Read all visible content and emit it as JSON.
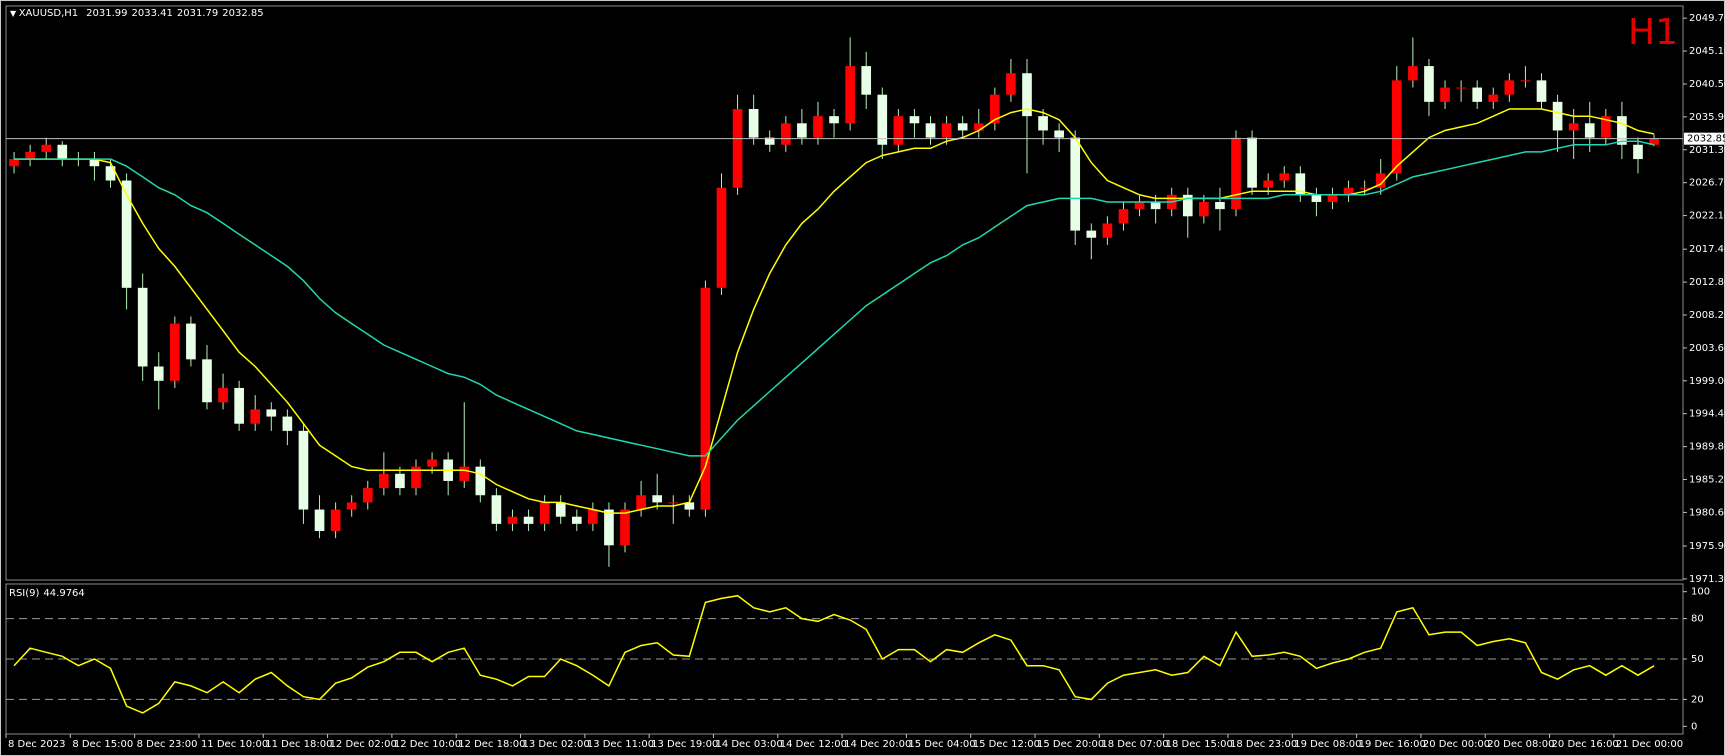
{
  "chart_data": {
    "type": "candlestick",
    "title": "XAUUSD,H1",
    "period_label": "H1",
    "up_color": "#ff0000",
    "down_color": "#e6ffe6",
    "wick_color": "#b8f0b8",
    "background": "#000000",
    "ylim": [
      1971.15,
      2051.4
    ],
    "yticks": [
      {
        "value": 2049.7,
        "label": "2049.70"
      },
      {
        "value": 2045.1,
        "label": "2045.10"
      },
      {
        "value": 2040.5,
        "label": "2040.50"
      },
      {
        "value": 2035.9,
        "label": "2035.90"
      },
      {
        "value": 2031.3,
        "label": "2031.30"
      },
      {
        "value": 2026.7,
        "label": "2026.70"
      },
      {
        "value": 2022.1,
        "label": "2022.10"
      },
      {
        "value": 2017.4,
        "label": "2017.40"
      },
      {
        "value": 2012.8,
        "label": "2012.80"
      },
      {
        "value": 2008.2,
        "label": "2008.20"
      },
      {
        "value": 2003.6,
        "label": "2003.60"
      },
      {
        "value": 1999,
        "label": "1999.00"
      },
      {
        "value": 1994.4,
        "label": "1994.40"
      },
      {
        "value": 1989.8,
        "label": "1989.80"
      },
      {
        "value": 1985.2,
        "label": "1985.20"
      },
      {
        "value": 1980.6,
        "label": "1980.60"
      },
      {
        "value": 1975.9,
        "label": "1975.90"
      },
      {
        "value": 1971.3,
        "label": "1971.30"
      }
    ],
    "categories": [
      "8 Dec 2023",
      null,
      null,
      null,
      "8 Dec 15:00",
      null,
      null,
      null,
      "8 Dec 23:00",
      null,
      null,
      null,
      "11 Dec 10:00",
      null,
      null,
      null,
      "11 Dec 18:00",
      null,
      null,
      null,
      "12 Dec 02:00",
      null,
      null,
      null,
      "12 Dec 10:00",
      null,
      null,
      null,
      "12 Dec 18:00",
      null,
      null,
      null,
      "13 Dec 02:00",
      null,
      null,
      null,
      "13 Dec 11:00",
      null,
      null,
      null,
      "13 Dec 19:00",
      null,
      null,
      null,
      "14 Dec 03:00",
      null,
      null,
      null,
      "14 Dec 12:00",
      null,
      null,
      null,
      "14 Dec 20:00",
      null,
      null,
      null,
      "15 Dec 04:00",
      null,
      null,
      null,
      "15 Dec 12:00",
      null,
      null,
      null,
      "15 Dec 20:00",
      null,
      null,
      null,
      "18 Dec 07:00",
      null,
      null,
      null,
      "18 Dec 15:00",
      null,
      null,
      null,
      "18 Dec 23:00",
      null,
      null,
      null,
      "19 Dec 08:00",
      null,
      null,
      null,
      "19 Dec 16:00",
      null,
      null,
      null,
      "20 Dec 00:00",
      null,
      null,
      null,
      "20 Dec 08:00",
      null,
      null,
      null,
      "20 Dec 16:00",
      null,
      null,
      null,
      "21 Dec 00:00",
      null,
      null
    ],
    "candles": [
      [
        2029,
        2031,
        2028,
        2030
      ],
      [
        2030,
        2032,
        2029,
        2031
      ],
      [
        2031,
        2033,
        2030,
        2032
      ],
      [
        2032,
        2032.5,
        2029,
        2030
      ],
      [
        2030,
        2031,
        2029,
        2030
      ],
      [
        2030,
        2031,
        2027,
        2029
      ],
      [
        2029,
        2030,
        2026,
        2027
      ],
      [
        2027,
        2028,
        2009,
        2012
      ],
      [
        2012,
        2014,
        1999,
        2001
      ],
      [
        2001,
        2003,
        1995,
        1999
      ],
      [
        1999,
        2008,
        1998,
        2007
      ],
      [
        2007,
        2008,
        2001,
        2002
      ],
      [
        2002,
        2004,
        1995,
        1996
      ],
      [
        1996,
        2000,
        1995,
        1998
      ],
      [
        1998,
        1999,
        1992,
        1993
      ],
      [
        1993,
        1997,
        1992,
        1995
      ],
      [
        1995,
        1996,
        1992,
        1994
      ],
      [
        1994,
        1995,
        1990,
        1992
      ],
      [
        1992,
        1993,
        1979,
        1981
      ],
      [
        1981,
        1983,
        1977,
        1978
      ],
      [
        1978,
        1982,
        1977,
        1981
      ],
      [
        1981,
        1983,
        1980,
        1982
      ],
      [
        1982,
        1985,
        1981,
        1984
      ],
      [
        1984,
        1989,
        1983,
        1986
      ],
      [
        1986,
        1987,
        1983,
        1984
      ],
      [
        1984,
        1988,
        1983,
        1987
      ],
      [
        1987,
        1989,
        1986,
        1988
      ],
      [
        1988,
        1989,
        1983,
        1985
      ],
      [
        1985,
        1996,
        1984,
        1987
      ],
      [
        1987,
        1988,
        1982,
        1983
      ],
      [
        1983,
        1984,
        1978,
        1979
      ],
      [
        1979,
        1981,
        1978,
        1980
      ],
      [
        1980,
        1981,
        1978,
        1979
      ],
      [
        1979,
        1983,
        1978,
        1982
      ],
      [
        1982,
        1983,
        1979,
        1980
      ],
      [
        1980,
        1981,
        1978,
        1979
      ],
      [
        1979,
        1982,
        1978,
        1981
      ],
      [
        1981,
        1982,
        1973,
        1976
      ],
      [
        1976,
        1982,
        1975,
        1981
      ],
      [
        1981,
        1985,
        1980,
        1983
      ],
      [
        1983,
        1986,
        1981,
        1982
      ],
      [
        1982,
        1983,
        1979,
        1982
      ],
      [
        1982,
        1983,
        1980,
        1981
      ],
      [
        1981,
        2013,
        1980,
        2012
      ],
      [
        2012,
        2028,
        2011,
        2026
      ],
      [
        2026,
        2039,
        2025,
        2037
      ],
      [
        2037,
        2039,
        2032,
        2033
      ],
      [
        2033,
        2034,
        2031,
        2032
      ],
      [
        2032,
        2036,
        2031,
        2035
      ],
      [
        2035,
        2037,
        2032,
        2033
      ],
      [
        2033,
        2038,
        2032,
        2036
      ],
      [
        2036,
        2037,
        2033,
        2035
      ],
      [
        2035,
        2047,
        2034,
        2043
      ],
      [
        2043,
        2045,
        2037,
        2039
      ],
      [
        2039,
        2040,
        2030,
        2032
      ],
      [
        2032,
        2037,
        2031,
        2036
      ],
      [
        2036,
        2037,
        2033,
        2035
      ],
      [
        2035,
        2036,
        2032,
        2033
      ],
      [
        2033,
        2036,
        2032,
        2035
      ],
      [
        2035,
        2036,
        2033,
        2034
      ],
      [
        2034,
        2037,
        2033,
        2035
      ],
      [
        2035,
        2040,
        2034,
        2039
      ],
      [
        2039,
        2044,
        2038,
        2042
      ],
      [
        2042,
        2044,
        2028,
        2036
      ],
      [
        2036,
        2037,
        2032,
        2034
      ],
      [
        2034,
        2035,
        2031,
        2033
      ],
      [
        2033,
        2034,
        2018,
        2020
      ],
      [
        2020,
        2021,
        2016,
        2019
      ],
      [
        2019,
        2022,
        2018,
        2021
      ],
      [
        2021,
        2024,
        2020,
        2023
      ],
      [
        2023,
        2025,
        2022,
        2024
      ],
      [
        2024,
        2025,
        2021,
        2023
      ],
      [
        2023,
        2026,
        2022,
        2025
      ],
      [
        2025,
        2026,
        2019,
        2022
      ],
      [
        2022,
        2025,
        2021,
        2024
      ],
      [
        2024,
        2026,
        2020,
        2023
      ],
      [
        2023,
        2034,
        2022,
        2033
      ],
      [
        2033,
        2034,
        2025,
        2026
      ],
      [
        2026,
        2028,
        2025,
        2027
      ],
      [
        2027,
        2029,
        2026,
        2028
      ],
      [
        2028,
        2029,
        2024,
        2025
      ],
      [
        2025,
        2026,
        2022,
        2024
      ],
      [
        2024,
        2026,
        2023,
        2025
      ],
      [
        2025,
        2027,
        2024,
        2026
      ],
      [
        2026,
        2027,
        2025,
        2026
      ],
      [
        2026,
        2030,
        2025,
        2028
      ],
      [
        2028,
        2043,
        2027,
        2041
      ],
      [
        2041,
        2047,
        2040,
        2043
      ],
      [
        2043,
        2044,
        2036,
        2038
      ],
      [
        2038,
        2041,
        2037,
        2040
      ],
      [
        2040,
        2041,
        2038,
        2040
      ],
      [
        2040,
        2041,
        2037,
        2038
      ],
      [
        2038,
        2040,
        2037,
        2039
      ],
      [
        2039,
        2042,
        2038,
        2041
      ],
      [
        2041,
        2043,
        2040,
        2041
      ],
      [
        2041,
        2042,
        2037,
        2038
      ],
      [
        2038,
        2039,
        2031,
        2034
      ],
      [
        2034,
        2037,
        2030,
        2035
      ],
      [
        2035,
        2038,
        2031,
        2033
      ],
      [
        2033,
        2037,
        2032,
        2036
      ],
      [
        2036,
        2038,
        2030,
        2032
      ],
      [
        2032,
        2033,
        2028,
        2030
      ],
      [
        2031.99,
        2033.41,
        2031.79,
        2032.85
      ]
    ],
    "lines": [
      {
        "color": "#ffff00",
        "values": [
          2030,
          2030,
          2030,
          2030,
          2030,
          2030,
          2029.5,
          2025,
          2021,
          2017.5,
          2015,
          2012,
          2009,
          2006,
          2003,
          2001,
          1998.5,
          1996,
          1993,
          1990,
          1988.5,
          1987,
          1986.5,
          1986.5,
          1986.5,
          1986.5,
          1986.5,
          1986.5,
          1986.5,
          1986,
          1984.5,
          1983.5,
          1982.5,
          1982,
          1982,
          1981.5,
          1981,
          1980.5,
          1980.5,
          1981,
          1981.5,
          1981.5,
          1982,
          1987,
          1995,
          2003,
          2009,
          2014,
          2018,
          2021,
          2023,
          2025.5,
          2027.5,
          2029.5,
          2030.5,
          2031,
          2031.5,
          2031.5,
          2032.5,
          2033,
          2034,
          2035.5,
          2036.5,
          2037,
          2036.5,
          2035.5,
          2033,
          2029.5,
          2027,
          2026,
          2025,
          2024.5,
          2024.5,
          2024.5,
          2024.5,
          2024.5,
          2025,
          2025.5,
          2025.5,
          2025.5,
          2025.5,
          2025,
          2025,
          2025,
          2025.5,
          2026.5,
          2029,
          2031,
          2033,
          2034,
          2034.5,
          2035,
          2036,
          2037,
          2037,
          2037,
          2036.5,
          2036,
          2036,
          2035.5,
          2035,
          2034,
          2033.5
        ]
      },
      {
        "color": "#20d8b0",
        "values": [
          2030,
          2030,
          2030,
          2030,
          2030,
          2030,
          2030,
          2029,
          2027.5,
          2026,
          2025,
          2023.5,
          2022.5,
          2021,
          2019.5,
          2018,
          2016.5,
          2015,
          2013,
          2010.5,
          2008.5,
          2007,
          2005.5,
          2004,
          2003,
          2002,
          2001,
          2000,
          1999.5,
          1998.5,
          1997,
          1996,
          1995,
          1994,
          1993,
          1992,
          1991.5,
          1991,
          1990.5,
          1990,
          1989.5,
          1989,
          1988.5,
          1988.5,
          1991,
          1993.5,
          1995.5,
          1997.5,
          1999.5,
          2001.5,
          2003.5,
          2005.5,
          2007.5,
          2009.5,
          2011,
          2012.5,
          2014,
          2015.5,
          2016.5,
          2018,
          2019,
          2020.5,
          2022,
          2023.5,
          2024,
          2024.5,
          2024.5,
          2024.5,
          2024,
          2024,
          2024,
          2024,
          2024,
          2024.5,
          2024.5,
          2024.5,
          2024.5,
          2024.5,
          2024.5,
          2025,
          2025,
          2025,
          2025,
          2025,
          2025,
          2025.5,
          2026.5,
          2027.5,
          2028,
          2028.5,
          2029,
          2029.5,
          2030,
          2030.5,
          2031,
          2031,
          2031.5,
          2032,
          2032,
          2032,
          2032.5,
          2032.5,
          2032
        ]
      }
    ],
    "rsi": {
      "name": "RSI(9)",
      "color": "#ffff00",
      "ylim": [
        -5.7,
        105.7
      ],
      "yticks": [
        100,
        80,
        50,
        20,
        0
      ],
      "levels": [
        80,
        50,
        20
      ],
      "values": [
        45,
        58,
        55,
        52,
        45,
        50,
        43,
        15,
        10,
        17,
        33,
        30,
        25,
        33,
        25,
        35,
        40,
        30,
        22,
        20,
        32,
        36,
        44,
        48,
        55,
        55,
        48,
        55,
        58,
        38,
        35,
        30,
        37,
        37,
        50,
        45,
        38,
        30,
        55,
        60,
        62,
        53,
        52,
        92,
        95,
        97,
        88,
        85,
        88,
        80,
        78,
        83,
        79,
        72,
        50,
        57,
        57,
        48,
        57,
        55,
        62,
        68,
        64,
        45,
        45,
        42,
        22,
        20,
        32,
        38,
        40,
        42,
        38,
        40,
        52,
        45,
        70,
        52,
        53,
        55,
        52,
        43,
        47,
        50,
        55,
        58,
        85,
        88,
        68,
        70,
        70,
        60,
        63,
        65,
        62,
        40,
        35,
        42,
        45,
        38,
        45,
        38,
        44.9764
      ]
    }
  }
}
